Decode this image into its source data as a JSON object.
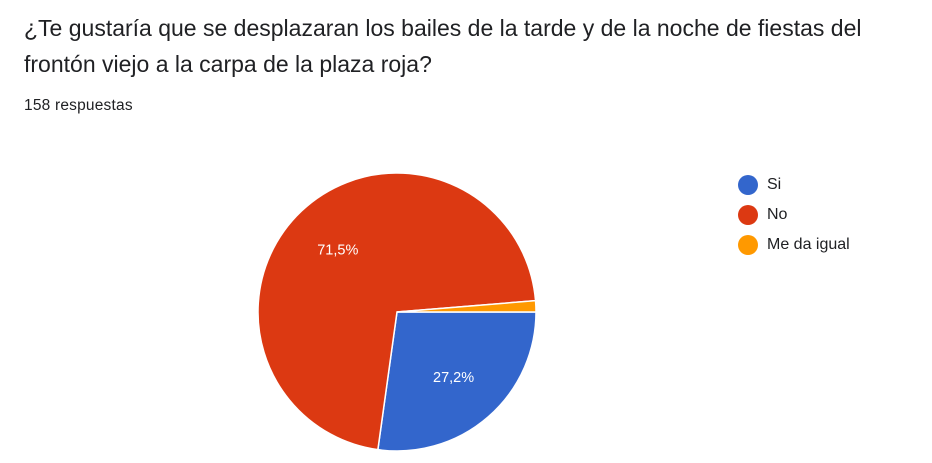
{
  "question": "¿Te gustaría que se desplazaran los bailes de la tarde y de la noche de fiestas del frontón viejo a la carpa de la plaza roja?",
  "responses": "158 respuestas",
  "chart_data": {
    "type": "pie",
    "title": "",
    "categories": [
      "Si",
      "No",
      "Me da igual"
    ],
    "values": [
      27.2,
      71.5,
      1.3
    ],
    "labels": [
      "27,2%",
      "71,5%",
      ""
    ],
    "colors": [
      "#3366cc",
      "#dc3912",
      "#ff9900"
    ],
    "legend_position": "right"
  }
}
